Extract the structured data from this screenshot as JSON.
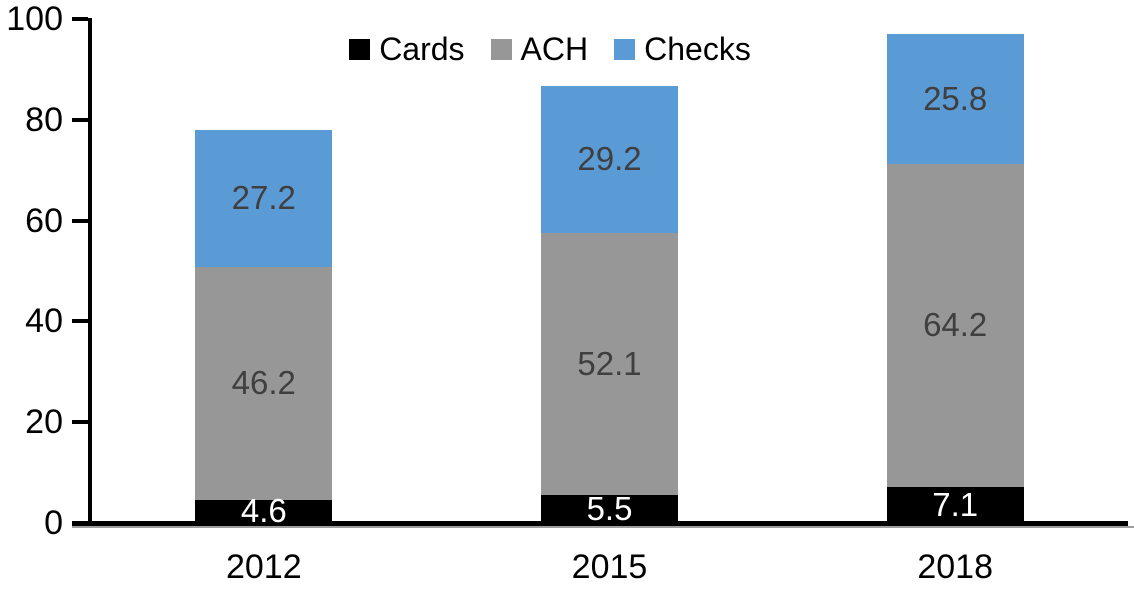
{
  "chart_data": {
    "type": "bar",
    "stacked": true,
    "title": "",
    "categories": [
      "2012",
      "2015",
      "2018"
    ],
    "series": [
      {
        "name": "Cards",
        "color": "#000000",
        "label_color": "#FFFFFF",
        "values": [
          4.6,
          5.5,
          7.1
        ]
      },
      {
        "name": "ACH",
        "color": "#979797",
        "label_color": "#3F3F3F",
        "values": [
          46.2,
          52.1,
          64.2
        ]
      },
      {
        "name": "Checks",
        "color": "#5B9BD5",
        "label_color": "#3F3F3F",
        "values": [
          27.2,
          29.2,
          25.8
        ]
      }
    ],
    "totals": [
      78.0,
      86.8,
      97.1
    ],
    "ylim": [
      0,
      100
    ],
    "yticks": [
      "0",
      "20",
      "40",
      "60",
      "80",
      "100"
    ],
    "xlabel": "",
    "ylabel": "",
    "grid": false,
    "data_labels": true,
    "legend_position": "top-center",
    "axis_color": "#000000",
    "axis_shadow_color": "#9e9e9e",
    "background_color": "#ffffff"
  }
}
